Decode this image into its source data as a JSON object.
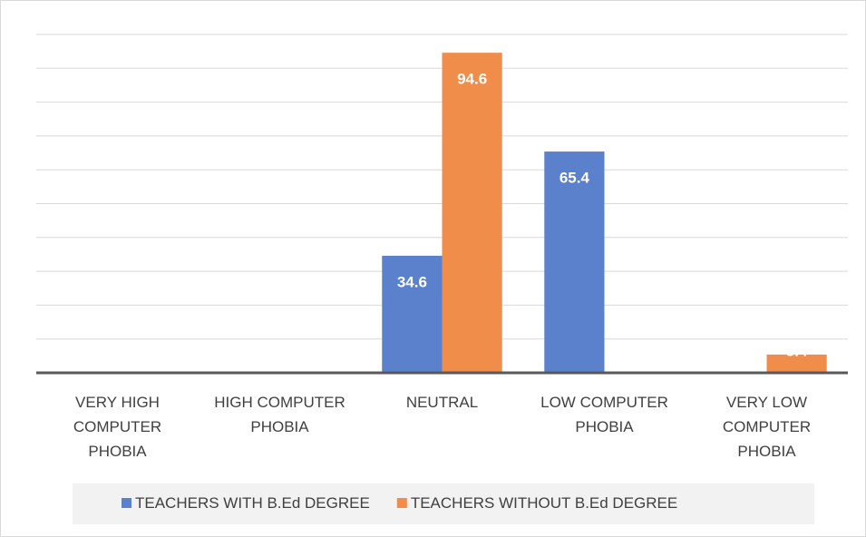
{
  "chart_data": {
    "type": "bar",
    "categories": [
      "VERY HIGH COMPUTER PHOBIA",
      "HIGH COMPUTER PHOBIA",
      "NEUTRAL",
      "LOW COMPUTER PHOBIA",
      "VERY LOW COMPUTER PHOBIA"
    ],
    "series": [
      {
        "name": "TEACHERS WITH B.Ed DEGREE",
        "color": "#5b80cc",
        "values": [
          0,
          0,
          34.6,
          65.4,
          0
        ]
      },
      {
        "name": "TEACHERS WITHOUT B.Ed DEGREE",
        "color": "#f08d4a",
        "values": [
          0,
          0,
          94.6,
          0,
          5.4
        ]
      }
    ],
    "ylim": [
      0,
      100
    ],
    "yticks": [
      0,
      10,
      20,
      30,
      40,
      50,
      60,
      70,
      80,
      90,
      100
    ],
    "grid": true,
    "legend": "bottom"
  }
}
